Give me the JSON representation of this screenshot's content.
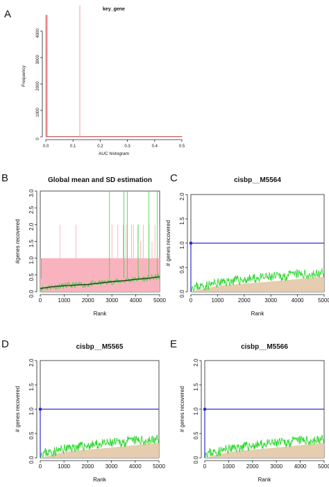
{
  "panel_letters": [
    "A",
    "B",
    "C",
    "D",
    "E"
  ],
  "chart_data": [
    {
      "panel": "A",
      "type": "bar",
      "title": "key_gene",
      "xlabel": "AUC histogram",
      "ylabel": "Frequency",
      "xlim": [
        0,
        0.5
      ],
      "ylim": [
        0,
        4600
      ],
      "x_ticks": [
        "0.0",
        "0.1",
        "0.2",
        "0.3",
        "0.4",
        "0.5"
      ],
      "y_ticks": [
        "0",
        "1000",
        "2000",
        "3000",
        "4000"
      ],
      "bars": [
        {
          "x_start": 0.0,
          "x_end": 0.005,
          "value": 4600
        },
        {
          "x_start": 0.005,
          "x_end": 0.5,
          "value": 15
        }
      ],
      "threshold_x": 0.125,
      "colors": {
        "bars": "#f4a5a5",
        "threshold": "#e8a0a0"
      }
    },
    {
      "panel": "B",
      "type": "line",
      "title": "Global mean and SD estimation",
      "xlabel": "Rank",
      "ylabel": "#genes recovered",
      "xlim": [
        0,
        5000
      ],
      "ylim": [
        0,
        3.0
      ],
      "x_ticks": [
        "0",
        "1000",
        "2000",
        "3000",
        "4000",
        "5000"
      ],
      "y_ticks": [
        "0.0",
        "0.5",
        "1.0",
        "1.5",
        "2.0",
        "2.5",
        "3.0"
      ],
      "band": {
        "lower": 0.0,
        "upper": 1.0,
        "color": "#f9b3be"
      },
      "pink_spikes": [
        {
          "x": 110,
          "y": 1.0
        },
        {
          "x": 240,
          "y": 1.0
        },
        {
          "x": 330,
          "y": 1.0
        },
        {
          "x": 420,
          "y": 1.0
        },
        {
          "x": 500,
          "y": 1.0
        },
        {
          "x": 560,
          "y": 1.0
        },
        {
          "x": 820,
          "y": 2.0
        },
        {
          "x": 1500,
          "y": 2.0
        },
        {
          "x": 3000,
          "y": 2.0
        },
        {
          "x": 3250,
          "y": 2.0
        },
        {
          "x": 3480,
          "y": 2.0
        },
        {
          "x": 3600,
          "y": 2.0
        },
        {
          "x": 3650,
          "y": 1.5
        },
        {
          "x": 3820,
          "y": 2.0
        },
        {
          "x": 3900,
          "y": 2.0
        },
        {
          "x": 3980,
          "y": 1.0
        },
        {
          "x": 4090,
          "y": 2.0
        },
        {
          "x": 4200,
          "y": 1.5
        },
        {
          "x": 4310,
          "y": 2.0
        },
        {
          "x": 4420,
          "y": 1.0
        },
        {
          "x": 4560,
          "y": 2.0
        },
        {
          "x": 4680,
          "y": 1.5
        },
        {
          "x": 4800,
          "y": 2.0
        },
        {
          "x": 4990,
          "y": 2.0
        }
      ],
      "green_spikes": [
        {
          "x": 40,
          "y": 1.0
        },
        {
          "x": 2900,
          "y": 3.0
        },
        {
          "x": 3500,
          "y": 3.0
        },
        {
          "x": 3650,
          "y": 3.0
        },
        {
          "x": 4100,
          "y": 2.0
        },
        {
          "x": 4550,
          "y": 3.0
        },
        {
          "x": 4900,
          "y": 3.0
        }
      ],
      "mean_line": [
        {
          "x": 0,
          "y": 0.1
        },
        {
          "x": 500,
          "y": 0.15
        },
        {
          "x": 1000,
          "y": 0.18
        },
        {
          "x": 1500,
          "y": 0.2
        },
        {
          "x": 2000,
          "y": 0.22
        },
        {
          "x": 2500,
          "y": 0.26
        },
        {
          "x": 3000,
          "y": 0.3
        },
        {
          "x": 3500,
          "y": 0.33
        },
        {
          "x": 4000,
          "y": 0.37
        },
        {
          "x": 4500,
          "y": 0.4
        },
        {
          "x": 5000,
          "y": 0.45
        }
      ],
      "colors": {
        "band": "#f9b3be",
        "spikes_pink": "#f06b7e",
        "spikes_green": "#37d63a",
        "mean": "#1f3b1f"
      }
    },
    {
      "panel": "C",
      "type": "area",
      "title": "cisbp__M5564",
      "xlabel": "Rank",
      "ylabel": "# genes recovered",
      "xlim": [
        0,
        5000
      ],
      "ylim": [
        0,
        2.0
      ],
      "x_ticks": [
        "0",
        "1000",
        "2000",
        "3000",
        "4000",
        "5000"
      ],
      "y_ticks": [
        "0.0",
        "0.5",
        "1.0",
        "1.5",
        "2.0"
      ],
      "recovery": [
        {
          "x": 0,
          "y": 0.1
        },
        {
          "x": 500,
          "y": 0.12
        },
        {
          "x": 1000,
          "y": 0.18
        },
        {
          "x": 1500,
          "y": 0.22
        },
        {
          "x": 2000,
          "y": 0.25
        },
        {
          "x": 2500,
          "y": 0.28
        },
        {
          "x": 3000,
          "y": 0.3
        },
        {
          "x": 3500,
          "y": 0.32
        },
        {
          "x": 4000,
          "y": 0.36
        },
        {
          "x": 4500,
          "y": 0.35
        },
        {
          "x": 5000,
          "y": 0.38
        }
      ],
      "mean_plus_sd": [
        {
          "x": 0,
          "y": 0.0
        },
        {
          "x": 1000,
          "y": 0.12
        },
        {
          "x": 2000,
          "y": 0.17
        },
        {
          "x": 3000,
          "y": 0.21
        },
        {
          "x": 4000,
          "y": 0.26
        },
        {
          "x": 5000,
          "y": 0.31
        }
      ],
      "max_point": {
        "x": 0,
        "y": 1.0
      },
      "colors": {
        "recovery": "#2bd62b",
        "area": "#e6cdb0",
        "blue": "#2b2bcc"
      }
    },
    {
      "panel": "D",
      "type": "area",
      "title": "cisbp__M5565",
      "xlabel": "Rank",
      "ylabel": "# genes recovered",
      "xlim": [
        0,
        5000
      ],
      "ylim": [
        0,
        2.0
      ],
      "x_ticks": [
        "0",
        "1000",
        "2000",
        "3000",
        "4000",
        "5000"
      ],
      "y_ticks": [
        "0.0",
        "0.5",
        "1.0",
        "1.5",
        "2.0"
      ],
      "recovery": [
        {
          "x": 0,
          "y": 0.1
        },
        {
          "x": 500,
          "y": 0.12
        },
        {
          "x": 1000,
          "y": 0.18
        },
        {
          "x": 1500,
          "y": 0.22
        },
        {
          "x": 2000,
          "y": 0.25
        },
        {
          "x": 2500,
          "y": 0.28
        },
        {
          "x": 3000,
          "y": 0.3
        },
        {
          "x": 3500,
          "y": 0.32
        },
        {
          "x": 4000,
          "y": 0.36
        },
        {
          "x": 4500,
          "y": 0.35
        },
        {
          "x": 5000,
          "y": 0.38
        }
      ],
      "mean_plus_sd": [
        {
          "x": 0,
          "y": 0.0
        },
        {
          "x": 1000,
          "y": 0.12
        },
        {
          "x": 2000,
          "y": 0.17
        },
        {
          "x": 3000,
          "y": 0.21
        },
        {
          "x": 4000,
          "y": 0.26
        },
        {
          "x": 5000,
          "y": 0.31
        }
      ],
      "max_point": {
        "x": 0,
        "y": 1.0
      },
      "colors": {
        "recovery": "#2bd62b",
        "area": "#e6cdb0",
        "blue": "#2b2bcc"
      }
    },
    {
      "panel": "E",
      "type": "area",
      "title": "cisbp__M5566",
      "xlabel": "Rank",
      "ylabel": "# genes recovered",
      "xlim": [
        0,
        5000
      ],
      "ylim": [
        0,
        2.0
      ],
      "x_ticks": [
        "0",
        "1000",
        "2000",
        "3000",
        "4000",
        "5000"
      ],
      "y_ticks": [
        "0.0",
        "0.5",
        "1.0",
        "1.5",
        "2.0"
      ],
      "recovery": [
        {
          "x": 0,
          "y": 0.1
        },
        {
          "x": 500,
          "y": 0.12
        },
        {
          "x": 1000,
          "y": 0.18
        },
        {
          "x": 1500,
          "y": 0.22
        },
        {
          "x": 2000,
          "y": 0.25
        },
        {
          "x": 2500,
          "y": 0.28
        },
        {
          "x": 3000,
          "y": 0.3
        },
        {
          "x": 3500,
          "y": 0.32
        },
        {
          "x": 4000,
          "y": 0.36
        },
        {
          "x": 4500,
          "y": 0.35
        },
        {
          "x": 5000,
          "y": 0.38
        }
      ],
      "mean_plus_sd": [
        {
          "x": 0,
          "y": 0.0
        },
        {
          "x": 1000,
          "y": 0.12
        },
        {
          "x": 2000,
          "y": 0.17
        },
        {
          "x": 3000,
          "y": 0.21
        },
        {
          "x": 4000,
          "y": 0.26
        },
        {
          "x": 5000,
          "y": 0.31
        }
      ],
      "max_point": {
        "x": 0,
        "y": 1.0
      },
      "colors": {
        "recovery": "#2bd62b",
        "area": "#e6cdb0",
        "blue": "#2b2bcc"
      }
    }
  ]
}
